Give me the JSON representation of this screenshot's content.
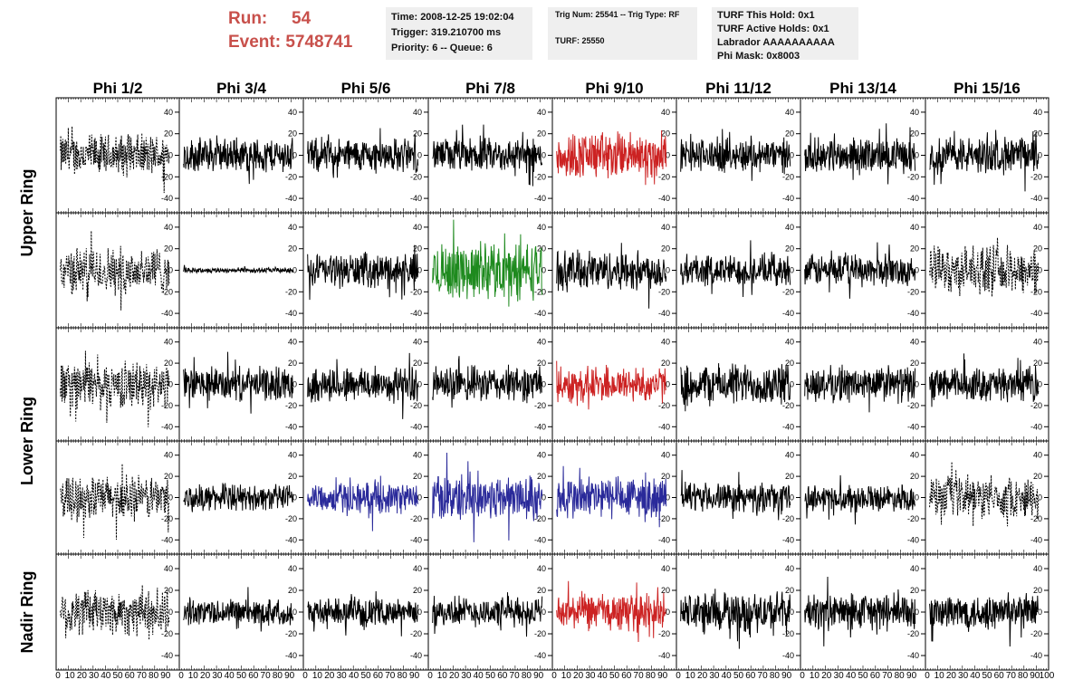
{
  "header": {
    "run_label": "Run:",
    "run_value": "54",
    "event_label": "Event:",
    "event_value": "5748741",
    "accent_color": "#c8504b"
  },
  "info_time": {
    "time": "Time: 2008-12-25 19:02:04",
    "trigger": "Trigger: 319.210700 ms",
    "priority": "Priority: 6 -- Queue: 6"
  },
  "info_trig": {
    "trig": "Trig Num: 25541 -- Trig Type: RF",
    "turf": "TURF: 25550"
  },
  "info_turf": {
    "hold": "TURF This Hold: 0x1",
    "active": "TURF Active Holds: 0x1",
    "labrador": "Labrador AAAAAAAAAA",
    "mask": "Phi Mask: 0x8003"
  },
  "colors": {
    "black": "#000000",
    "red": "#cc2222",
    "green": "#1e8a1e",
    "blue": "#2a2a9a"
  },
  "chart_data": {
    "type": "line",
    "columns": [
      "Phi 1/2",
      "Phi 3/4",
      "Phi 5/6",
      "Phi 7/8",
      "Phi 9/10",
      "Phi 11/12",
      "Phi 13/14",
      "Phi 15/16"
    ],
    "ring_labels": [
      {
        "name": "Upper Ring",
        "rows": [
          0,
          1
        ]
      },
      {
        "name": "Lower Ring",
        "rows": [
          2,
          3
        ]
      },
      {
        "name": "Nadir Ring",
        "rows": [
          4
        ]
      }
    ],
    "xlim": [
      0,
      100
    ],
    "ylim": [
      -50,
      50
    ],
    "xticks": [
      0,
      10,
      20,
      30,
      40,
      50,
      60,
      70,
      80,
      90,
      100
    ],
    "yticks": [
      40,
      20,
      0,
      -20,
      -40
    ],
    "panels": [
      [
        {
          "color": "black",
          "style": "dashed",
          "amp": 16
        },
        {
          "color": "black",
          "style": "solid",
          "amp": 13
        },
        {
          "color": "black",
          "style": "solid",
          "amp": 13
        },
        {
          "color": "black",
          "style": "solid",
          "amp": 13
        },
        {
          "color": "red",
          "style": "solid",
          "amp": 18
        },
        {
          "color": "black",
          "style": "solid",
          "amp": 13
        },
        {
          "color": "black",
          "style": "solid",
          "amp": 13
        },
        {
          "color": "black",
          "style": "solid",
          "amp": 14
        }
      ],
      [
        {
          "color": "black",
          "style": "dashed",
          "amp": 18
        },
        {
          "color": "black",
          "style": "solid",
          "amp": 2
        },
        {
          "color": "black",
          "style": "solid",
          "amp": 13
        },
        {
          "color": "green",
          "style": "solid",
          "amp": 22
        },
        {
          "color": "black",
          "style": "solid",
          "amp": 15
        },
        {
          "color": "black",
          "style": "solid",
          "amp": 12
        },
        {
          "color": "black",
          "style": "solid",
          "amp": 12
        },
        {
          "color": "black",
          "style": "dashed",
          "amp": 18
        }
      ],
      [
        {
          "color": "black",
          "style": "dashed",
          "amp": 18
        },
        {
          "color": "black",
          "style": "solid",
          "amp": 13
        },
        {
          "color": "black",
          "style": "solid",
          "amp": 14
        },
        {
          "color": "black",
          "style": "solid",
          "amp": 14
        },
        {
          "color": "red",
          "style": "solid",
          "amp": 14
        },
        {
          "color": "black",
          "style": "solid",
          "amp": 16
        },
        {
          "color": "black",
          "style": "solid",
          "amp": 14
        },
        {
          "color": "black",
          "style": "solid",
          "amp": 13
        }
      ],
      [
        {
          "color": "black",
          "style": "dashed",
          "amp": 17
        },
        {
          "color": "black",
          "style": "solid",
          "amp": 10
        },
        {
          "color": "blue",
          "style": "solid",
          "amp": 12
        },
        {
          "color": "blue",
          "style": "solid",
          "amp": 18
        },
        {
          "color": "blue",
          "style": "solid",
          "amp": 17
        },
        {
          "color": "black",
          "style": "solid",
          "amp": 11
        },
        {
          "color": "black",
          "style": "solid",
          "amp": 10
        },
        {
          "color": "black",
          "style": "dashed",
          "amp": 16
        }
      ],
      [
        {
          "color": "black",
          "style": "dashed",
          "amp": 18
        },
        {
          "color": "black",
          "style": "solid",
          "amp": 10
        },
        {
          "color": "black",
          "style": "solid",
          "amp": 10
        },
        {
          "color": "black",
          "style": "solid",
          "amp": 11
        },
        {
          "color": "red",
          "style": "solid",
          "amp": 14
        },
        {
          "color": "black",
          "style": "solid",
          "amp": 15
        },
        {
          "color": "black",
          "style": "solid",
          "amp": 14
        },
        {
          "color": "black",
          "style": "solid",
          "amp": 14
        }
      ]
    ]
  }
}
